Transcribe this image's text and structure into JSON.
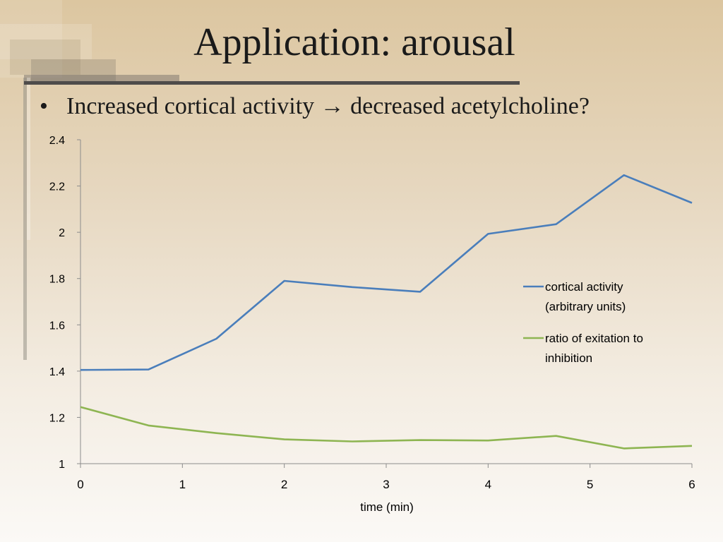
{
  "slide": {
    "title": "Application: arousal",
    "bullet": "Increased cortical activity → decreased acetylcholine?"
  },
  "colors": {
    "cortical": "#4a7ebb",
    "ratio": "#8eb552",
    "axis": "#8c8c8c",
    "title_rule": "#4e4c4a"
  },
  "chart_data": {
    "type": "line",
    "title": "",
    "xlabel": "time (min)",
    "ylabel": "",
    "xlim": [
      0,
      6
    ],
    "ylim": [
      1,
      2.4
    ],
    "xticks": [
      0,
      1,
      2,
      3,
      4,
      5,
      6
    ],
    "yticks": [
      1,
      1.2,
      1.4,
      1.6,
      1.8,
      2,
      2.2,
      2.4
    ],
    "ytick_labels": [
      "1",
      "1.2",
      "1.4",
      "1.6",
      "1.8",
      "2",
      "2.2",
      "2.4"
    ],
    "grid": false,
    "legend_position": "right",
    "x": [
      0,
      0.667,
      1.333,
      2,
      2.667,
      3.333,
      4,
      4.667,
      5.333,
      6
    ],
    "series": [
      {
        "name": "cortical activity (arbitrary units)",
        "legend_lines": [
          "cortical activity",
          "(arbitrary units)"
        ],
        "color": "#4a7ebb",
        "values": [
          1.405,
          1.407,
          1.54,
          1.79,
          1.763,
          1.743,
          1.993,
          2.035,
          2.247,
          2.127
        ]
      },
      {
        "name": "ratio of exitation to inhibition",
        "legend_lines": [
          "ratio of exitation to",
          "inhibition"
        ],
        "color": "#8eb552",
        "values": [
          1.245,
          1.165,
          1.132,
          1.105,
          1.096,
          1.102,
          1.1,
          1.12,
          1.066,
          1.077
        ]
      }
    ]
  }
}
